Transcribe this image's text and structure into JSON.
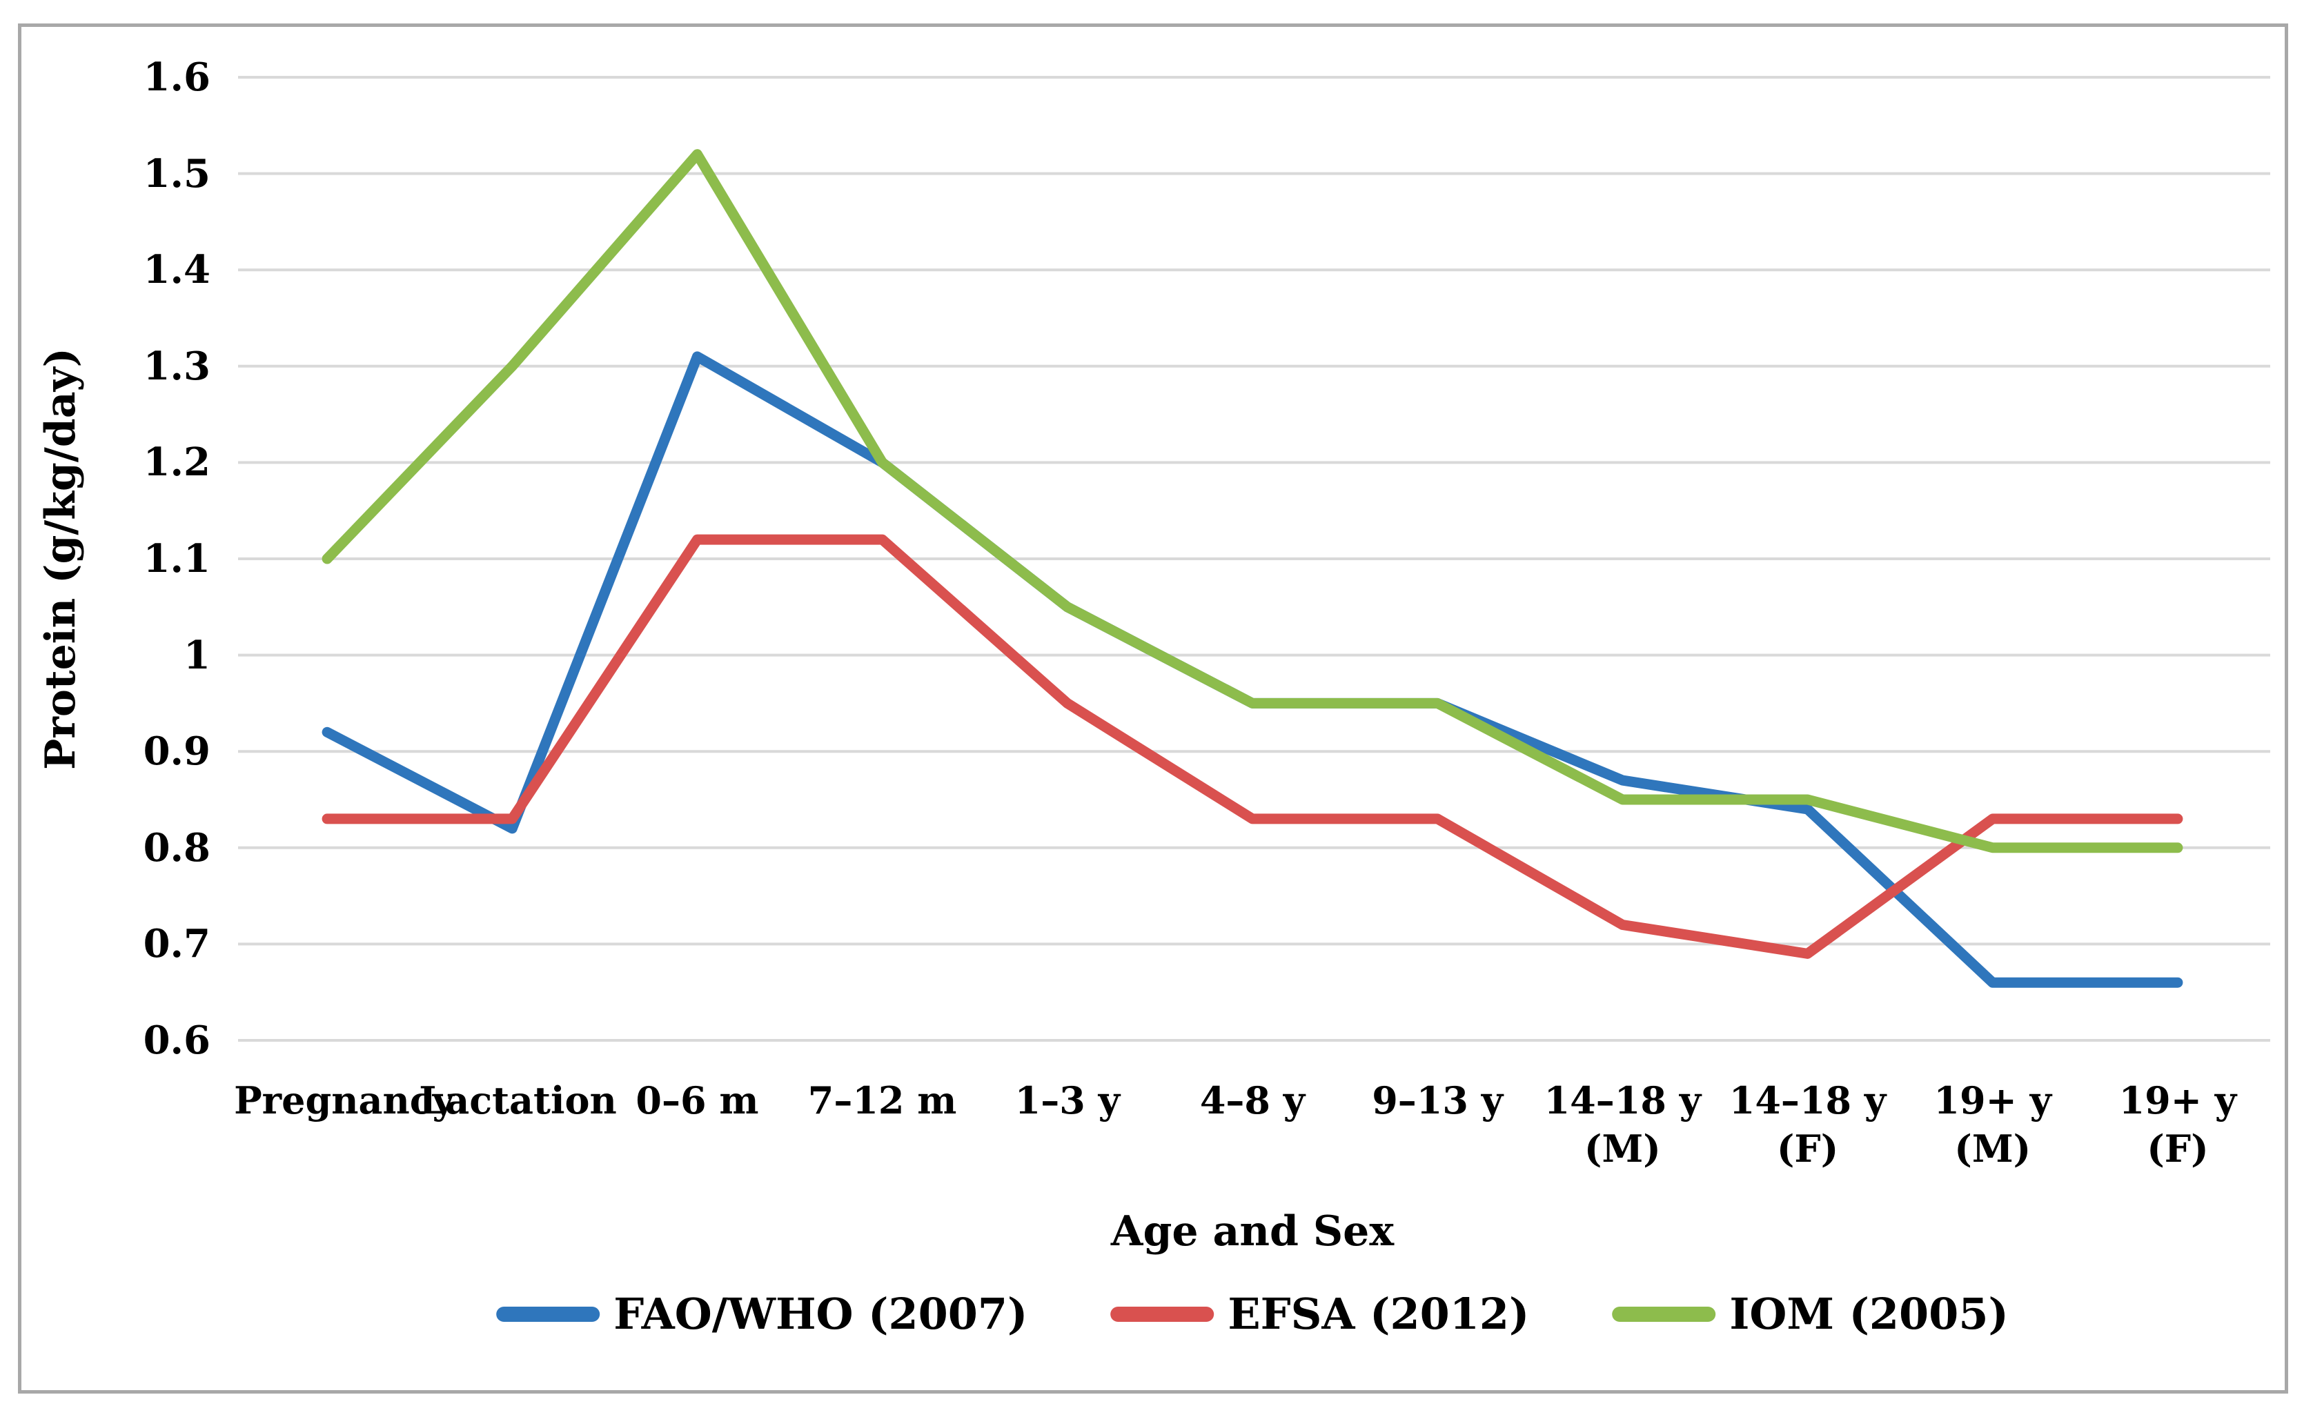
{
  "figure": {
    "y_axis_title": "Protein (g/kg/day)",
    "x_axis_title": "Age and Sex"
  },
  "chart_data": {
    "type": "line",
    "title": "",
    "xlabel": "Age and Sex",
    "ylabel": "Protein (g/kg/day)",
    "categories": [
      "Pregnancy",
      "Lactation",
      "0–6 m",
      "7–12 m",
      "1–3 y",
      "4–8 y",
      "9–13 y",
      "14–18 y (M)",
      "14–18 y (F)",
      "19+ y (M)",
      "19+ y (F)"
    ],
    "series": [
      {
        "name": "FAO/WHO (2007)",
        "color": "#2f76bc",
        "values": [
          0.92,
          0.82,
          1.31,
          1.2,
          1.05,
          0.95,
          0.95,
          0.87,
          0.84,
          0.66,
          0.66
        ]
      },
      {
        "name": "EFSA (2012)",
        "color": "#d9514f",
        "values": [
          0.83,
          0.83,
          1.12,
          1.12,
          0.95,
          0.83,
          0.83,
          0.72,
          0.69,
          0.83,
          0.83
        ]
      },
      {
        "name": "IOM (2005)",
        "color": "#8dbc4c",
        "values": [
          1.1,
          1.3,
          1.52,
          1.2,
          1.05,
          0.95,
          0.95,
          0.85,
          0.85,
          0.8,
          0.8
        ]
      }
    ],
    "ylim": [
      0.6,
      1.6
    ],
    "ytick_step": 0.1,
    "ytick_labels": [
      "1.6",
      "1.5",
      "1.4",
      "1.3",
      "1.2",
      "1.1",
      "1",
      "0.9",
      "0.8",
      "0.7",
      "0.6"
    ],
    "grid": true,
    "gridline_color": "#d9d9d9",
    "legend_position": "bottom"
  },
  "style": {
    "frame_color": "#a8a8a8",
    "background": "#ffffff",
    "text_color": "#000000",
    "line_width": 15
  }
}
